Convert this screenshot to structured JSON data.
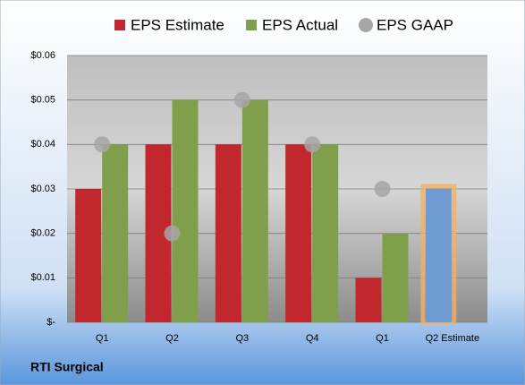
{
  "chart_data": {
    "type": "bar",
    "footer": "RTI Surgical",
    "categories": [
      "Q1",
      "Q2",
      "Q3",
      "Q4",
      "Q1",
      "Q2 Estimate"
    ],
    "series": [
      {
        "name": "EPS Estimate",
        "color": "#c0282d",
        "values": [
          0.03,
          0.04,
          0.04,
          0.04,
          0.01,
          null
        ]
      },
      {
        "name": "EPS Actual",
        "color": "#7f9f4a",
        "values": [
          0.04,
          0.05,
          0.05,
          0.04,
          0.02,
          null
        ]
      },
      {
        "name": "EPS GAAP",
        "color": "#a6a6a6",
        "marker": "circle",
        "values": [
          0.04,
          0.02,
          0.05,
          0.04,
          0.03,
          null
        ]
      },
      {
        "color": "#6f9bd3",
        "values": [
          null,
          null,
          null,
          null,
          null,
          0.03
        ]
      }
    ],
    "ylim": [
      0,
      0.06
    ],
    "yticks": [
      {
        "value": 0,
        "label": "$-"
      },
      {
        "value": 0.01,
        "label": "$0.01"
      },
      {
        "value": 0.02,
        "label": "$0.02"
      },
      {
        "value": 0.03,
        "label": "$0.03"
      },
      {
        "value": 0.04,
        "label": "$0.04"
      },
      {
        "value": 0.05,
        "label": "$0.05"
      },
      {
        "value": 0.06,
        "label": "$0.06"
      }
    ],
    "grid": true
  }
}
